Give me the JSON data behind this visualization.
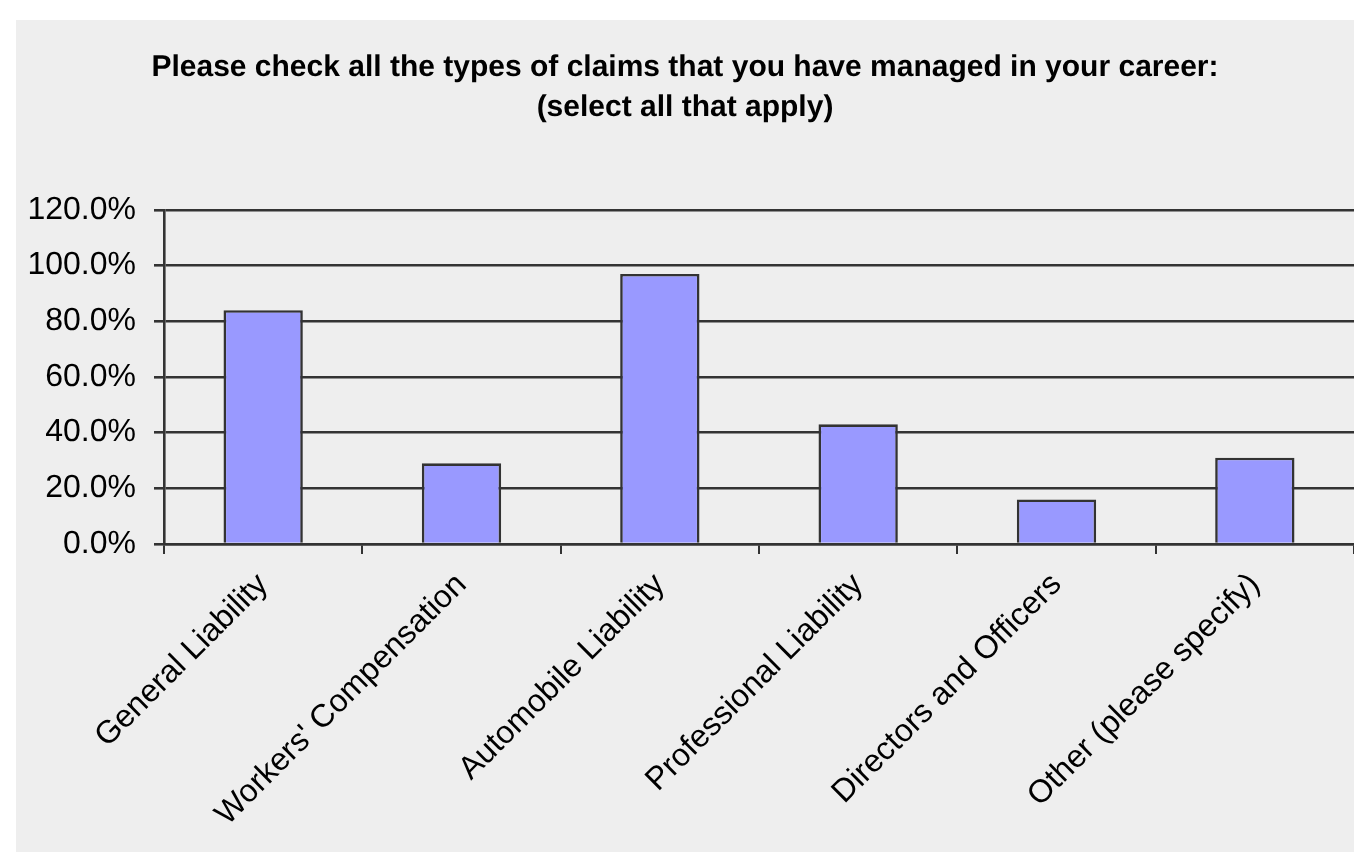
{
  "chart_data": {
    "type": "bar",
    "title": "Please check all the types of claims that you have managed in your career:",
    "subtitle": "(select all that apply)",
    "categories": [
      "General Liability",
      "Workers' Compensation",
      "Automobile Liability",
      "Professional Liability",
      "Directors and Officers",
      "Other (please specify)"
    ],
    "values": [
      84,
      29,
      97,
      43,
      16,
      31
    ],
    "color": "#9999ff",
    "ylim": [
      0,
      120
    ],
    "yticks": [
      {
        "value": 0,
        "label": "0.0%"
      },
      {
        "value": 20,
        "label": "20.0%"
      },
      {
        "value": 40,
        "label": "40.0%"
      },
      {
        "value": 60,
        "label": "60.0%"
      },
      {
        "value": 80,
        "label": "80.0%"
      },
      {
        "value": 100,
        "label": "100.0%"
      },
      {
        "value": 120,
        "label": "120.0%"
      }
    ],
    "grid": "y"
  }
}
